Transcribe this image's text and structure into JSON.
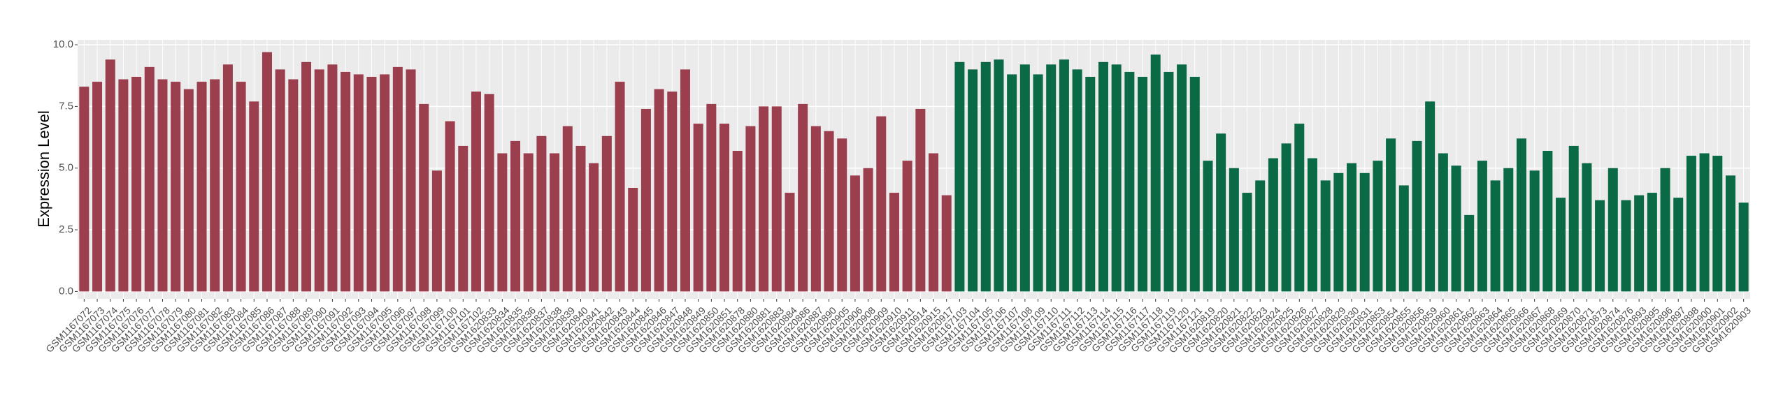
{
  "chart_data": {
    "type": "bar",
    "y_label": "Expression Level",
    "ylim": [
      -0.3,
      10.2
    ],
    "yticks": [
      {
        "value": 0,
        "label": "0.0"
      },
      {
        "value": 2.5,
        "label": "2.5"
      },
      {
        "value": 5,
        "label": "5.0"
      },
      {
        "value": 7.5,
        "label": "7.5"
      },
      {
        "value": 10,
        "label": "10.0"
      }
    ],
    "grid": true,
    "series": [
      {
        "color": "#9b3e4e",
        "categories": [
          "GSM1167072",
          "GSM1167073",
          "GSM1167074",
          "GSM1167075",
          "GSM1167076",
          "GSM1167077",
          "GSM1167078",
          "GSM1167079",
          "GSM1167080",
          "GSM1167081",
          "GSM1167082",
          "GSM1167083",
          "GSM1167084",
          "GSM1167085",
          "GSM1167086",
          "GSM1167087",
          "GSM1167088",
          "GSM1167089",
          "GSM1167090",
          "GSM1167091",
          "GSM1167092",
          "GSM1167093",
          "GSM1167094",
          "GSM1167095",
          "GSM1167096",
          "GSM1167097",
          "GSM1167098",
          "GSM1167099",
          "GSM1167100",
          "GSM1167101",
          "GSM1167102",
          "GSM1620833",
          "GSM1620834",
          "GSM1620835",
          "GSM1620836",
          "GSM1620837",
          "GSM1620838",
          "GSM1620839",
          "GSM1620840",
          "GSM1620841",
          "GSM1620842",
          "GSM1620843",
          "GSM1620844",
          "GSM1620845",
          "GSM1620846",
          "GSM1620847",
          "GSM1620848",
          "GSM1620849",
          "GSM1620850",
          "GSM1620851",
          "GSM1620878",
          "GSM1620880",
          "GSM1620881",
          "GSM1620883",
          "GSM1620884",
          "GSM1620886",
          "GSM1620887",
          "GSM1620890",
          "GSM1620905",
          "GSM1620906",
          "GSM1620908",
          "GSM1620909",
          "GSM1620910",
          "GSM1620911",
          "GSM1620914",
          "GSM1620915",
          "GSM1620917"
        ],
        "values": [
          8.3,
          8.5,
          9.4,
          8.6,
          8.7,
          9.1,
          8.6,
          8.5,
          8.2,
          8.5,
          8.6,
          9.2,
          8.5,
          7.7,
          9.7,
          9.0,
          8.6,
          9.3,
          9.0,
          9.2,
          8.9,
          8.8,
          8.7,
          8.8,
          9.1,
          9.0,
          7.6,
          4.9,
          6.9,
          5.9,
          8.1,
          8.0,
          5.6,
          6.1,
          5.6,
          6.3,
          5.6,
          6.7,
          5.9,
          5.2,
          6.3,
          8.5,
          4.2,
          7.4,
          8.2,
          8.1,
          9.0,
          6.8,
          7.6,
          6.8,
          5.7,
          6.7,
          7.5,
          7.5,
          4.0,
          7.6,
          6.7,
          6.5,
          6.2,
          4.7,
          5.0,
          7.1,
          4.0,
          5.3,
          7.4,
          5.6,
          3.9
        ]
      },
      {
        "color": "#0a6a46",
        "categories": [
          "GSM1167103",
          "GSM1167104",
          "GSM1167105",
          "GSM1167106",
          "GSM1167107",
          "GSM1167108",
          "GSM1167109",
          "GSM1167110",
          "GSM1167111",
          "GSM1167112",
          "GSM1167113",
          "GSM1167114",
          "GSM1167115",
          "GSM1167116",
          "GSM1167117",
          "GSM1167118",
          "GSM1167119",
          "GSM1167120",
          "GSM1167121",
          "GSM1620819",
          "GSM1620820",
          "GSM1620821",
          "GSM1620822",
          "GSM1620823",
          "GSM1620824",
          "GSM1620825",
          "GSM1620826",
          "GSM1620827",
          "GSM1620828",
          "GSM1620829",
          "GSM1620830",
          "GSM1620831",
          "GSM1620853",
          "GSM1620854",
          "GSM1620855",
          "GSM1620856",
          "GSM1620859",
          "GSM1620860",
          "GSM1620861",
          "GSM1620862",
          "GSM1620863",
          "GSM1620864",
          "GSM1620865",
          "GSM1620866",
          "GSM1620867",
          "GSM1620868",
          "GSM1620869",
          "GSM1620870",
          "GSM1620871",
          "GSM1620873",
          "GSM1620874",
          "GSM1620876",
          "GSM1620893",
          "GSM1620895",
          "GSM1620896",
          "GSM1620897",
          "GSM1620898",
          "GSM1620900",
          "GSM1620901",
          "GSM1620902",
          "GSM1620903"
        ],
        "values": [
          9.3,
          9.0,
          9.3,
          9.4,
          8.8,
          9.2,
          8.8,
          9.2,
          9.4,
          9.0,
          8.7,
          9.3,
          9.2,
          8.9,
          8.7,
          9.6,
          8.9,
          9.2,
          8.7,
          5.3,
          6.4,
          5.0,
          4.0,
          4.5,
          5.4,
          6.0,
          6.8,
          5.4,
          4.5,
          4.8,
          5.2,
          4.8,
          5.3,
          6.2,
          4.3,
          6.1,
          7.7,
          5.6,
          5.1,
          3.1,
          5.3,
          4.5,
          5.0,
          6.2,
          4.9,
          5.7,
          3.8,
          5.9,
          5.2,
          3.7,
          5.0,
          3.7,
          3.9,
          4.0,
          5.0,
          3.8,
          5.5,
          5.6,
          5.5,
          4.7,
          3.6
        ]
      }
    ]
  }
}
